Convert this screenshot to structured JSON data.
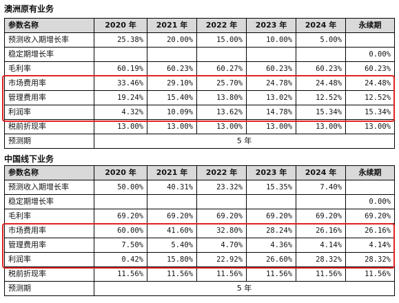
{
  "colors": {
    "header_bg": "#d9d9d9",
    "highlight_border": "#e02020"
  },
  "tables": [
    {
      "title": "澳洲原有业务",
      "headers": [
        "参数名称",
        "2020 年",
        "2021 年",
        "2022 年",
        "2023 年",
        "2024 年",
        "永续期"
      ],
      "rows": [
        {
          "label": "预测收入期增长率",
          "values": [
            "25.38%",
            "20.00%",
            "15.00%",
            "10.00%",
            "5.00%",
            ""
          ]
        },
        {
          "label": "稳定期增长率",
          "values": [
            "",
            "",
            "",
            "",
            "",
            "0.00%"
          ]
        },
        {
          "label": "毛利率",
          "values": [
            "60.19%",
            "60.23%",
            "60.27%",
            "60.23%",
            "60.23%",
            "60.23%"
          ]
        },
        {
          "label": "市场费用率",
          "values": [
            "33.46%",
            "29.10%",
            "25.70%",
            "24.78%",
            "24.48%",
            "24.48%"
          ]
        },
        {
          "label": "管理费用率",
          "values": [
            "19.24%",
            "15.40%",
            "13.80%",
            "13.02%",
            "12.52%",
            "12.52%"
          ]
        },
        {
          "label": "利润率",
          "values": [
            "4.32%",
            "10.09%",
            "13.62%",
            "14.78%",
            "15.34%",
            "15.34%"
          ]
        },
        {
          "label": "税前折现率",
          "values": [
            "13.00%",
            "13.00%",
            "13.00%",
            "13.00%",
            "13.00%",
            "13.00%"
          ]
        }
      ],
      "forecast_label": "预测期",
      "forecast_value": "5 年"
    },
    {
      "title": "中国线下业务",
      "headers": [
        "参数名称",
        "2020 年",
        "2021 年",
        "2022 年",
        "2023 年",
        "2024 年",
        "永续期"
      ],
      "rows": [
        {
          "label": "预测收入期增长率",
          "values": [
            "50.00%",
            "40.31%",
            "23.32%",
            "15.35%",
            "7.40%",
            ""
          ]
        },
        {
          "label": "稳定期增长率",
          "values": [
            "",
            "",
            "",
            "",
            "",
            "0.00%"
          ]
        },
        {
          "label": "毛利率",
          "values": [
            "69.20%",
            "69.20%",
            "69.20%",
            "69.20%",
            "69.20%",
            "69.20%"
          ]
        },
        {
          "label": "市场费用率",
          "values": [
            "60.00%",
            "41.60%",
            "32.80%",
            "28.24%",
            "26.16%",
            "26.16%"
          ]
        },
        {
          "label": "管理费用率",
          "values": [
            "7.50%",
            "5.40%",
            "4.70%",
            "4.36%",
            "4.14%",
            "4.14%"
          ]
        },
        {
          "label": "利润率",
          "values": [
            "0.42%",
            "15.80%",
            "22.92%",
            "26.60%",
            "28.32%",
            "28.32%"
          ]
        },
        {
          "label": "税前折现率",
          "values": [
            "11.56%",
            "11.56%",
            "11.56%",
            "11.56%",
            "11.56%",
            "11.56%"
          ]
        }
      ],
      "forecast_label": "预测期",
      "forecast_value": "5 年"
    }
  ]
}
